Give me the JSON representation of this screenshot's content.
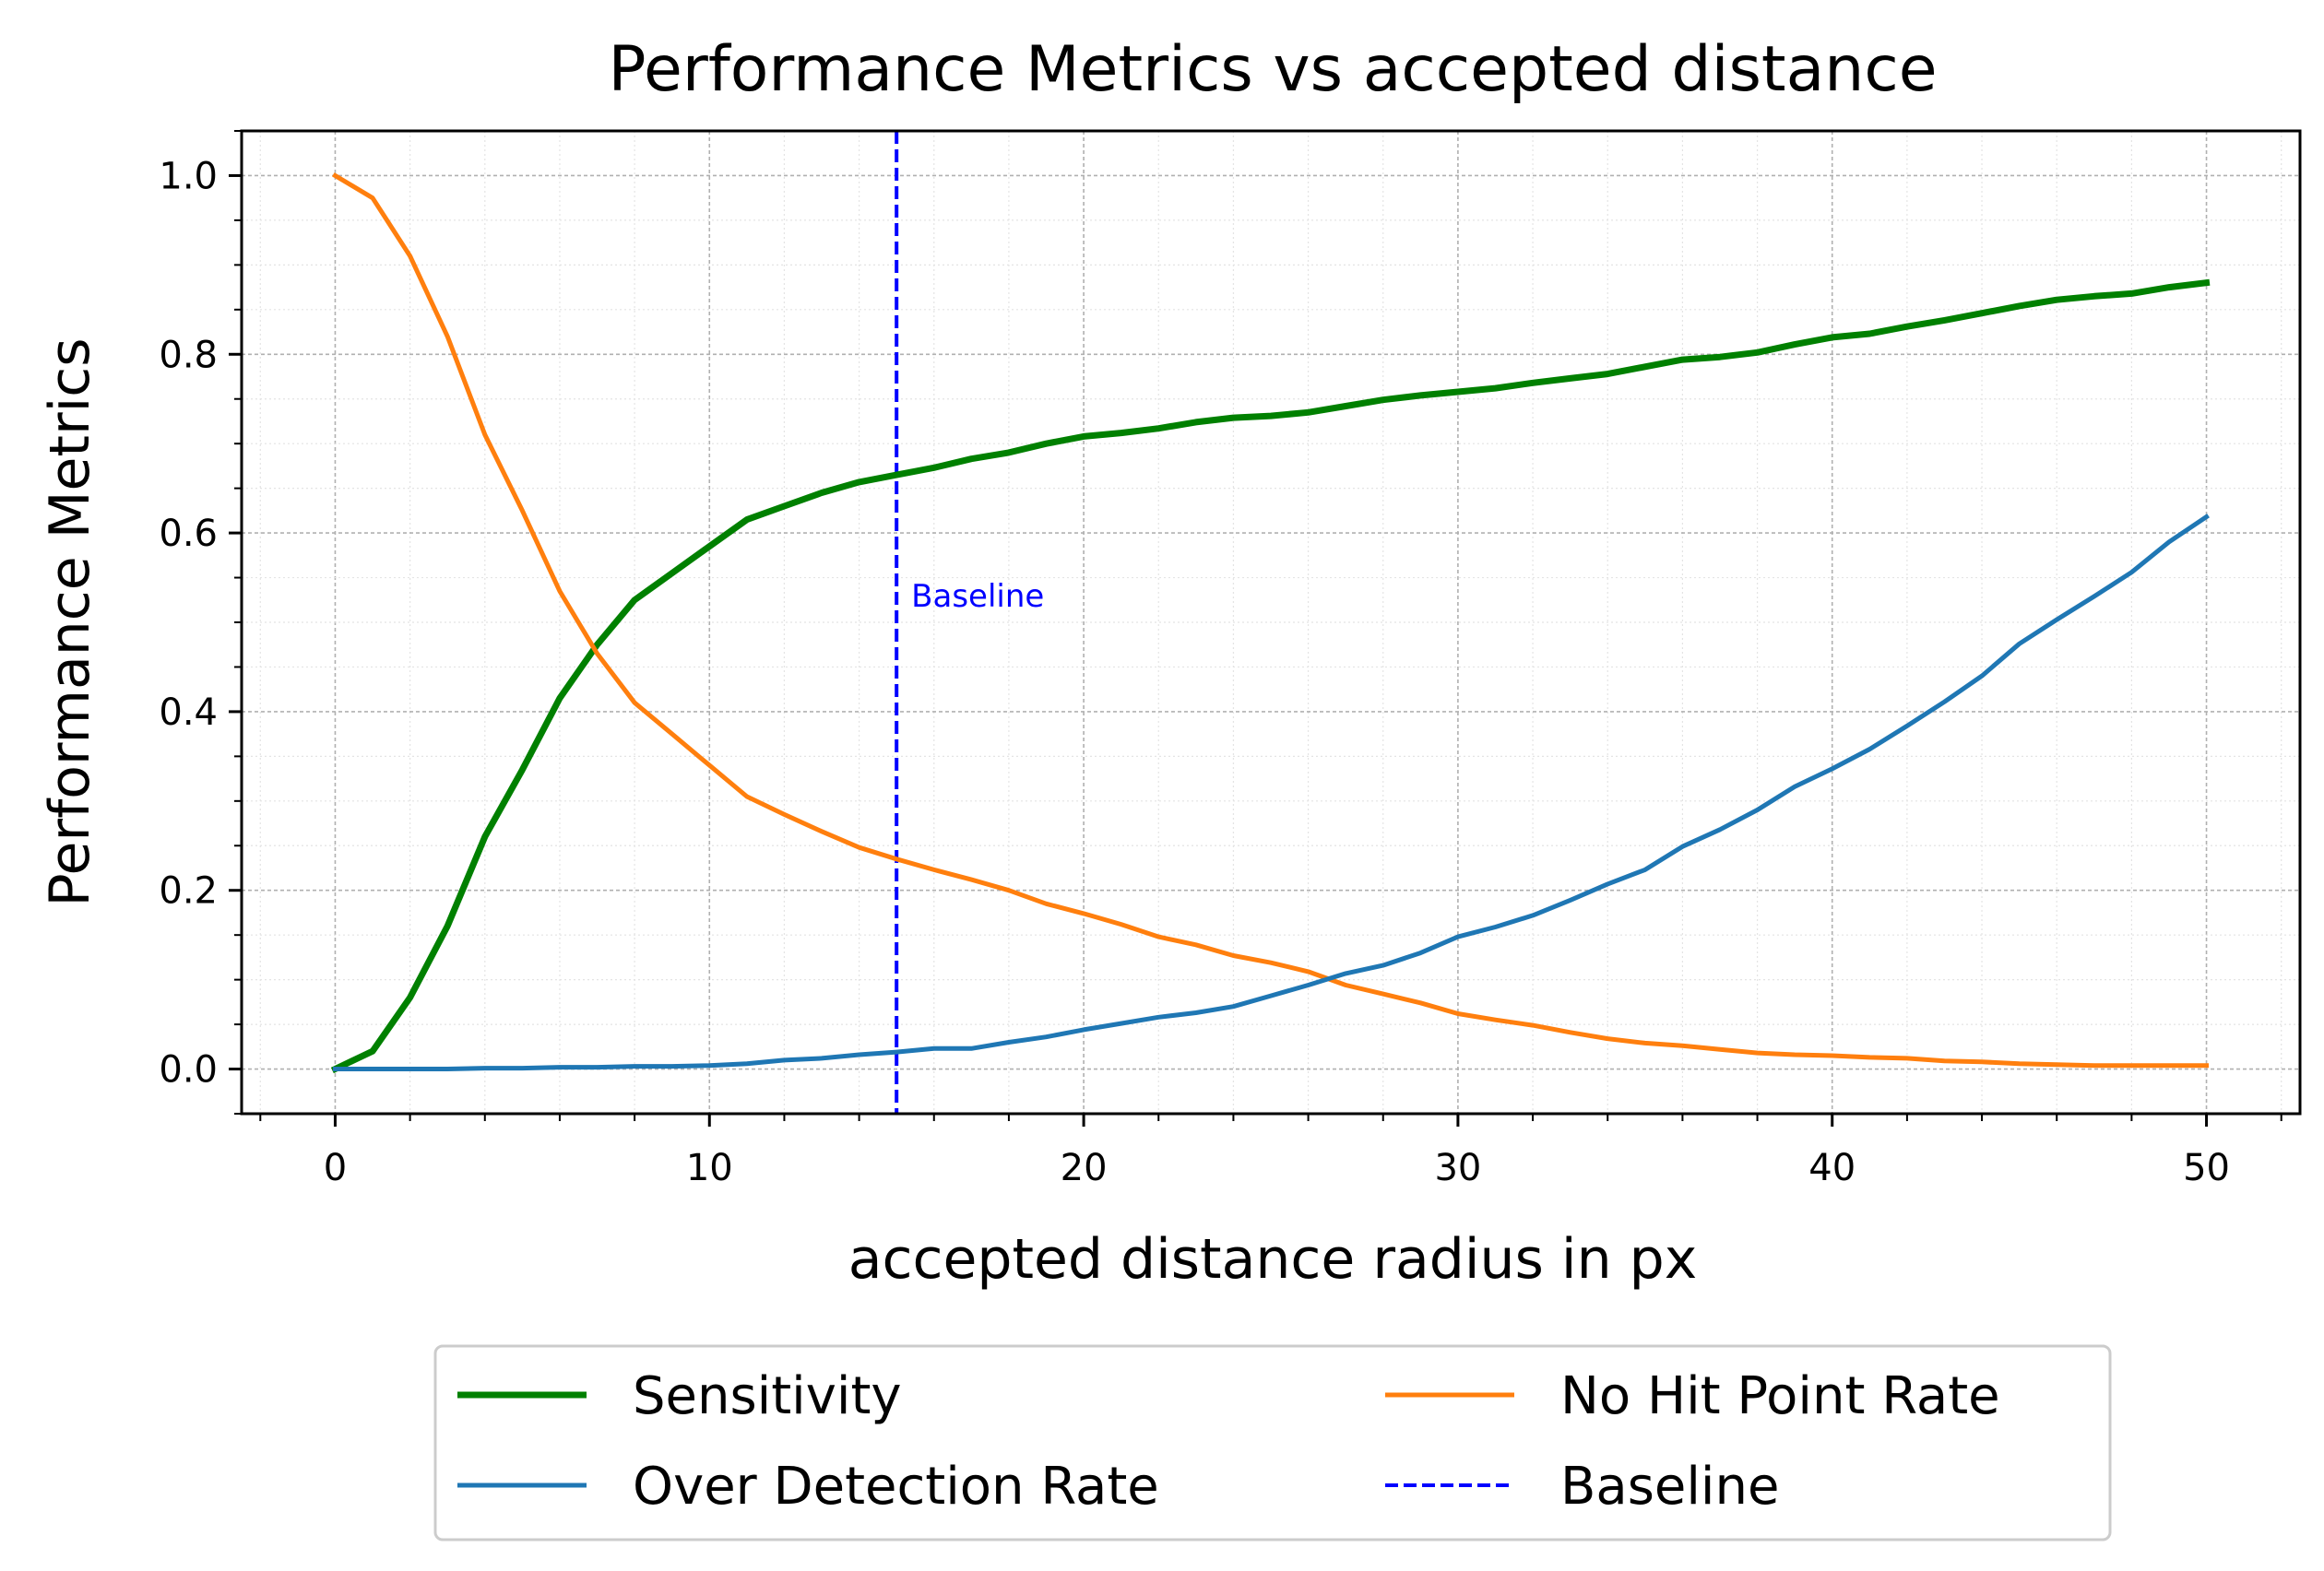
{
  "chart_data": {
    "type": "line",
    "title": "Performance Metrics vs accepted distance",
    "xlabel": "accepted distance radius in px",
    "ylabel": "Performance Metrics",
    "xlim": [
      -2.5,
      52.5
    ],
    "ylim": [
      -0.05,
      1.05
    ],
    "xticks": [
      0,
      10,
      20,
      30,
      40,
      50
    ],
    "xtick_labels": [
      "0",
      "10",
      "20",
      "30",
      "40",
      "50"
    ],
    "yticks": [
      0.0,
      0.2,
      0.4,
      0.6,
      0.8,
      1.0
    ],
    "ytick_labels": [
      "0.0",
      "0.2",
      "0.4",
      "0.6",
      "0.8",
      "1.0"
    ],
    "grid": true,
    "legend_position": "below plot, two columns",
    "x": [
      0,
      1,
      2,
      3,
      4,
      5,
      6,
      7,
      8,
      9,
      10,
      11,
      12,
      13,
      14,
      15,
      16,
      17,
      18,
      19,
      20,
      21,
      22,
      23,
      24,
      25,
      26,
      27,
      28,
      29,
      30,
      31,
      32,
      33,
      34,
      35,
      36,
      37,
      38,
      39,
      40,
      41,
      42,
      43,
      44,
      45,
      46,
      47,
      48,
      49,
      50
    ],
    "series": [
      {
        "name": "Sensitivity",
        "color": "#008000",
        "style": "solid-thick",
        "values": [
          0.0,
          0.02,
          0.08,
          0.16,
          0.26,
          0.335,
          0.415,
          0.475,
          0.525,
          0.555,
          0.585,
          0.615,
          0.63,
          0.645,
          0.657,
          0.665,
          0.673,
          0.683,
          0.69,
          0.7,
          0.708,
          0.712,
          0.717,
          0.724,
          0.729,
          0.731,
          0.735,
          0.742,
          0.749,
          0.754,
          0.758,
          0.762,
          0.768,
          0.773,
          0.778,
          0.786,
          0.794,
          0.797,
          0.802,
          0.811,
          0.819,
          0.823,
          0.831,
          0.838,
          0.846,
          0.854,
          0.861,
          0.865,
          0.868,
          0.875,
          0.88
        ]
      },
      {
        "name": "No Hit Point Rate",
        "color": "#ff7f0e",
        "style": "solid",
        "values": [
          1.0,
          0.975,
          0.91,
          0.82,
          0.71,
          0.625,
          0.535,
          0.465,
          0.41,
          0.375,
          0.34,
          0.305,
          0.285,
          0.266,
          0.248,
          0.235,
          0.223,
          0.212,
          0.2,
          0.185,
          0.174,
          0.162,
          0.148,
          0.139,
          0.127,
          0.119,
          0.109,
          0.094,
          0.084,
          0.074,
          0.062,
          0.055,
          0.049,
          0.041,
          0.034,
          0.029,
          0.026,
          0.022,
          0.018,
          0.016,
          0.015,
          0.013,
          0.012,
          0.009,
          0.008,
          0.006,
          0.005,
          0.004,
          0.004,
          0.004,
          0.004
        ]
      },
      {
        "name": "Over Detection Rate",
        "color": "#1f77b4",
        "style": "solid",
        "values": [
          0.0,
          0.0,
          0.0,
          0.0,
          0.001,
          0.001,
          0.002,
          0.002,
          0.003,
          0.003,
          0.004,
          0.006,
          0.01,
          0.012,
          0.016,
          0.019,
          0.023,
          0.023,
          0.03,
          0.036,
          0.044,
          0.051,
          0.058,
          0.063,
          0.07,
          0.082,
          0.094,
          0.107,
          0.116,
          0.13,
          0.148,
          0.159,
          0.172,
          0.189,
          0.207,
          0.223,
          0.249,
          0.268,
          0.29,
          0.316,
          0.336,
          0.358,
          0.384,
          0.411,
          0.44,
          0.476,
          0.503,
          0.529,
          0.556,
          0.59,
          0.618
        ]
      }
    ],
    "baseline": {
      "name": "Baseline",
      "x": 15,
      "color": "#0000ff",
      "style": "dashed",
      "annotation": "Baseline"
    },
    "legend": [
      {
        "label": "Sensitivity",
        "color": "#008000",
        "style": "solid-thick"
      },
      {
        "label": "No Hit Point Rate",
        "color": "#ff7f0e",
        "style": "solid"
      },
      {
        "label": "Over Detection Rate",
        "color": "#1f77b4",
        "style": "solid"
      },
      {
        "label": "Baseline",
        "color": "#0000ff",
        "style": "dashed"
      }
    ]
  }
}
